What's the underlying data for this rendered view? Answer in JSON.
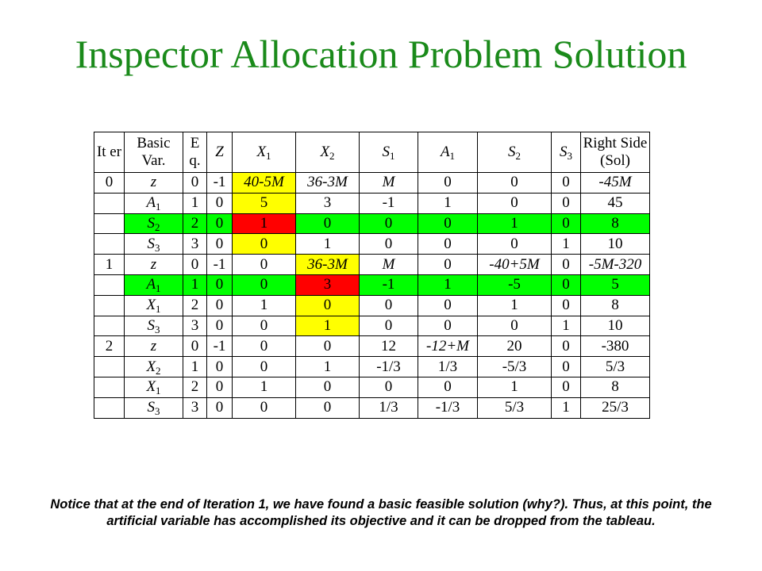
{
  "title": "Inspector Allocation Problem Solution",
  "colors": {
    "title": "#1a8a1a",
    "entering_column": "#ffff00",
    "leaving_row": "#00ff00",
    "pivot": "#ff0000"
  },
  "headers": [
    {
      "text": "It er"
    },
    {
      "text": "Basic Var."
    },
    {
      "text": "E q."
    },
    {
      "main": "Z"
    },
    {
      "main": "X",
      "sub": "1"
    },
    {
      "main": "X",
      "sub": "2"
    },
    {
      "main": "S",
      "sub": "1"
    },
    {
      "main": "A",
      "sub": "1"
    },
    {
      "main": "S",
      "sub": "2"
    },
    {
      "main": "S",
      "sub": "3"
    },
    {
      "text": "Right Side (Sol)"
    }
  ],
  "rows": [
    {
      "iter": "0",
      "basic": {
        "main": "z"
      },
      "eq": "0",
      "cells": [
        "-1",
        "40-5M",
        "36-3M",
        "M",
        "0",
        "0",
        "0",
        "-45M"
      ],
      "hl": [
        "",
        "yellow",
        "",
        "",
        "",
        "",
        "",
        ""
      ]
    },
    {
      "iter": "",
      "basic": {
        "main": "A",
        "sub": "1"
      },
      "eq": "1",
      "cells": [
        "0",
        "5",
        "3",
        "-1",
        "1",
        "0",
        "0",
        "45"
      ],
      "hl": [
        "",
        "yellow",
        "",
        "",
        "",
        "",
        "",
        ""
      ]
    },
    {
      "iter": "",
      "basic": {
        "main": "S",
        "sub": "2"
      },
      "eq": "2",
      "cells": [
        "0",
        "1",
        "0",
        "0",
        "0",
        "1",
        "0",
        "8"
      ],
      "hl": [
        "green",
        "red",
        "green",
        "green",
        "green",
        "green",
        "green",
        "green"
      ],
      "row_hl": "green"
    },
    {
      "iter": "",
      "basic": {
        "main": "S",
        "sub": "3"
      },
      "eq": "3",
      "cells": [
        "0",
        "0",
        "1",
        "0",
        "0",
        "0",
        "1",
        "10"
      ],
      "hl": [
        "",
        "yellow",
        "",
        "",
        "",
        "",
        "",
        ""
      ]
    },
    {
      "iter": "1",
      "basic": {
        "main": "z"
      },
      "eq": "0",
      "cells": [
        "-1",
        "0",
        "36-3M",
        "M",
        "0",
        "-40+5M",
        "0",
        "-5M-320"
      ],
      "hl": [
        "",
        "",
        "yellow",
        "",
        "",
        "",
        "",
        ""
      ]
    },
    {
      "iter": "",
      "basic": {
        "main": "A",
        "sub": "1"
      },
      "eq": "1",
      "cells": [
        "0",
        "0",
        "3",
        "-1",
        "1",
        "-5",
        "0",
        "5"
      ],
      "hl": [
        "green",
        "green",
        "red",
        "green",
        "green",
        "green",
        "green",
        "green"
      ],
      "row_hl": "green"
    },
    {
      "iter": "",
      "basic": {
        "main": "X",
        "sub": "1"
      },
      "eq": "2",
      "cells": [
        "0",
        "1",
        "0",
        "0",
        "0",
        "1",
        "0",
        "8"
      ],
      "hl": [
        "",
        "",
        "yellow",
        "",
        "",
        "",
        "",
        ""
      ]
    },
    {
      "iter": "",
      "basic": {
        "main": "S",
        "sub": "3"
      },
      "eq": "3",
      "cells": [
        "0",
        "0",
        "1",
        "0",
        "0",
        "0",
        "1",
        "10"
      ],
      "hl": [
        "",
        "",
        "yellow",
        "",
        "",
        "",
        "",
        ""
      ]
    },
    {
      "iter": "2",
      "basic": {
        "main": "z"
      },
      "eq": "0",
      "cells": [
        "-1",
        "0",
        "0",
        "12",
        "-12+M",
        "20",
        "0",
        "-380"
      ],
      "hl": [
        "",
        "",
        "",
        "",
        "",
        "",
        "",
        ""
      ]
    },
    {
      "iter": "",
      "basic": {
        "main": "X",
        "sub": "2"
      },
      "eq": "1",
      "cells": [
        "0",
        "0",
        "1",
        "-1/3",
        "1/3",
        "-5/3",
        "0",
        "5/3"
      ],
      "hl": [
        "",
        "",
        "",
        "",
        "",
        "",
        "",
        ""
      ]
    },
    {
      "iter": "",
      "basic": {
        "main": "X",
        "sub": "1"
      },
      "eq": "2",
      "cells": [
        "0",
        "1",
        "0",
        "0",
        "0",
        "1",
        "0",
        "8"
      ],
      "hl": [
        "",
        "",
        "",
        "",
        "",
        "",
        "",
        ""
      ]
    },
    {
      "iter": "",
      "basic": {
        "main": "S",
        "sub": "3"
      },
      "eq": "3",
      "cells": [
        "0",
        "0",
        "0",
        "1/3",
        "-1/3",
        "5/3",
        "1",
        "25/3"
      ],
      "hl": [
        "",
        "",
        "",
        "",
        "",
        "",
        "",
        ""
      ]
    }
  ],
  "note": "Notice that at the end of Iteration 1, we have found a basic feasible solution (why?).  Thus, at this point, the artificial variable has accomplished its objective and it can be dropped from the tableau."
}
